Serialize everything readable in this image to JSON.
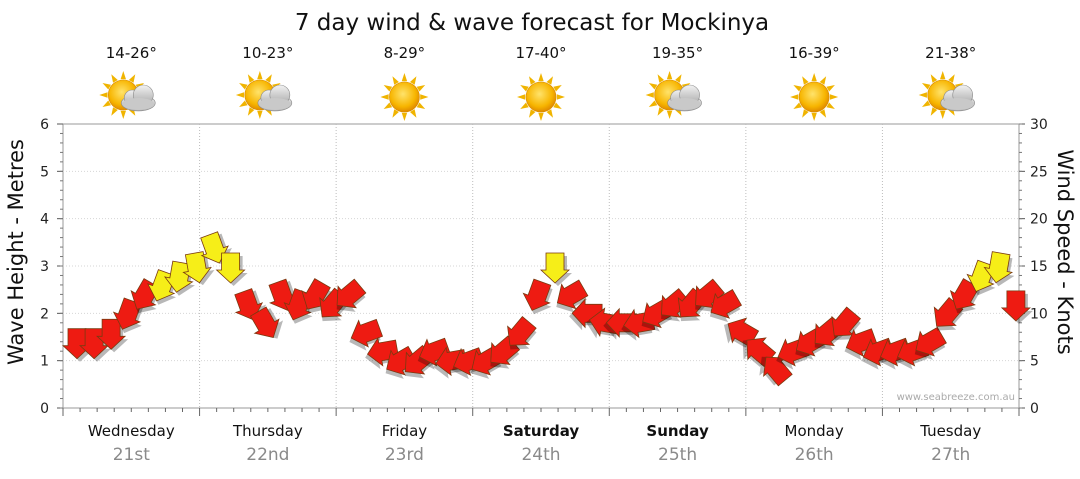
{
  "chart_data": {
    "type": "line",
    "title": "7 day wind & wave forecast for Mockinya",
    "ylabel_left": "Wave Height - Metres",
    "ylabel_right": "Wind Speed - Knots",
    "y_left_range": [
      0,
      6
    ],
    "y_left_ticks": [
      "0",
      "1",
      "2",
      "3",
      "4",
      "5",
      "6"
    ],
    "y_right_range": [
      0,
      30
    ],
    "y_right_ticks": [
      "0",
      "5",
      "10",
      "15",
      "20",
      "25",
      "30"
    ],
    "grid": true,
    "watermark": "www.seabreeze.com.au",
    "days": [
      {
        "name": "Wednesday",
        "date": "21st",
        "temp": "14-26°",
        "icon": "partly-cloudy-icon",
        "bold": false
      },
      {
        "name": "Thursday",
        "date": "22nd",
        "temp": "10-23°",
        "icon": "partly-cloudy-icon",
        "bold": false
      },
      {
        "name": "Friday",
        "date": "23rd",
        "temp": "8-29°",
        "icon": "sunny-icon",
        "bold": false
      },
      {
        "name": "Saturday",
        "date": "24th",
        "temp": "17-40°",
        "icon": "sunny-icon",
        "bold": true
      },
      {
        "name": "Sunday",
        "date": "25th",
        "temp": "19-35°",
        "icon": "partly-cloudy-icon",
        "bold": true
      },
      {
        "name": "Monday",
        "date": "26th",
        "temp": "16-39°",
        "icon": "sunny-icon",
        "bold": false
      },
      {
        "name": "Tuesday",
        "date": "27th",
        "temp": "21-38°",
        "icon": "partly-cloudy-icon",
        "bold": false
      }
    ],
    "wind_series": {
      "name": "Wind Speed",
      "units": "knots",
      "x_hours": [
        0,
        3,
        6,
        9,
        12,
        15,
        18,
        21,
        24,
        27,
        30,
        33,
        36,
        39,
        42,
        45,
        48,
        51,
        54,
        57,
        60,
        63,
        66,
        69,
        72,
        75,
        78,
        81,
        84,
        87,
        90,
        93,
        96,
        99,
        102,
        105,
        108,
        111,
        114,
        117,
        120,
        123,
        126,
        129,
        132,
        135,
        138,
        141,
        144,
        147,
        150,
        153,
        156,
        159,
        162,
        165
      ],
      "values": [
        7,
        7,
        8,
        10,
        12,
        13,
        14,
        15,
        17,
        15,
        11,
        9,
        12,
        11,
        12,
        11,
        12,
        8,
        6,
        5,
        5,
        6,
        5,
        5,
        5,
        6,
        8,
        12,
        15,
        12,
        10,
        9,
        9,
        9,
        10,
        11,
        11,
        12,
        11,
        8,
        6,
        4,
        6,
        7,
        8,
        9,
        7,
        6,
        6,
        6,
        7,
        10,
        12,
        14,
        15,
        11
      ],
      "directions_deg": [
        180,
        180,
        180,
        200,
        210,
        200,
        190,
        170,
        160,
        180,
        160,
        150,
        160,
        200,
        210,
        220,
        230,
        250,
        260,
        240,
        230,
        250,
        260,
        250,
        240,
        230,
        220,
        200,
        180,
        240,
        270,
        280,
        270,
        260,
        240,
        230,
        220,
        230,
        240,
        300,
        310,
        320,
        250,
        240,
        230,
        220,
        250,
        250,
        250,
        250,
        240,
        220,
        210,
        200,
        190,
        180
      ],
      "colour_above_13kn": "#f6ee18",
      "colour_below_13kn": "#ee1b12"
    }
  }
}
